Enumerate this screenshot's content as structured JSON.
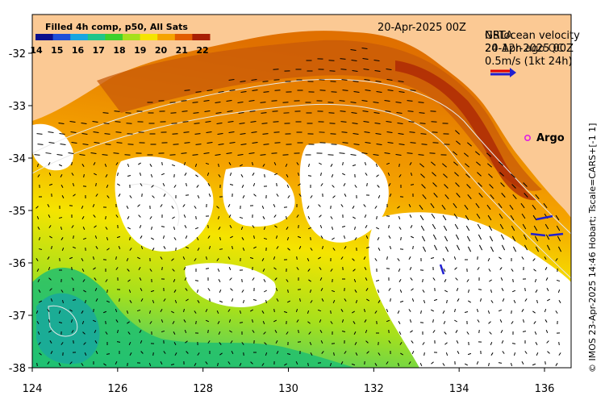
{
  "colorbar": {
    "title": "Filled 4h comp, p50, All Sats",
    "ticks": [
      "14",
      "15",
      "16",
      "17",
      "18",
      "19",
      "20",
      "21",
      "22"
    ],
    "colors": [
      "#0b0f8c",
      "#1f4fd8",
      "#18a6e0",
      "#1fc58a",
      "#3ed02c",
      "#a6e01c",
      "#f5e400",
      "#f5a300",
      "#e25c00",
      "#a81f05"
    ]
  },
  "header": {
    "date": "20-Apr-2025 00Z"
  },
  "velocity_legend": {
    "line1": "NRTocean velocity",
    "line2": "20-Apr-2025 00Z",
    "overlay1": "GSLA",
    "overlay2": "24-12h ago QC",
    "scale_text": "0.5m/s (1kt 24h)"
  },
  "markers": {
    "argo_label": "Argo"
  },
  "axes": {
    "x_ticks": [
      "124",
      "126",
      "128",
      "130",
      "132",
      "134",
      "136"
    ],
    "y_ticks": [
      "-32",
      "-33",
      "-34",
      "-35",
      "-36",
      "-37",
      "-38"
    ]
  },
  "credit": "© IMOS 23-Apr-2025 14:46 Hobart; Tscale=CARS+[-1 1]",
  "colors": {
    "land": "#fbc994",
    "frame": "#000000",
    "contour": "#e8e8e8",
    "argo": "#e020e0",
    "legend_arrow_red": "#e00000",
    "legend_arrow_blue": "#1f1fd0"
  }
}
